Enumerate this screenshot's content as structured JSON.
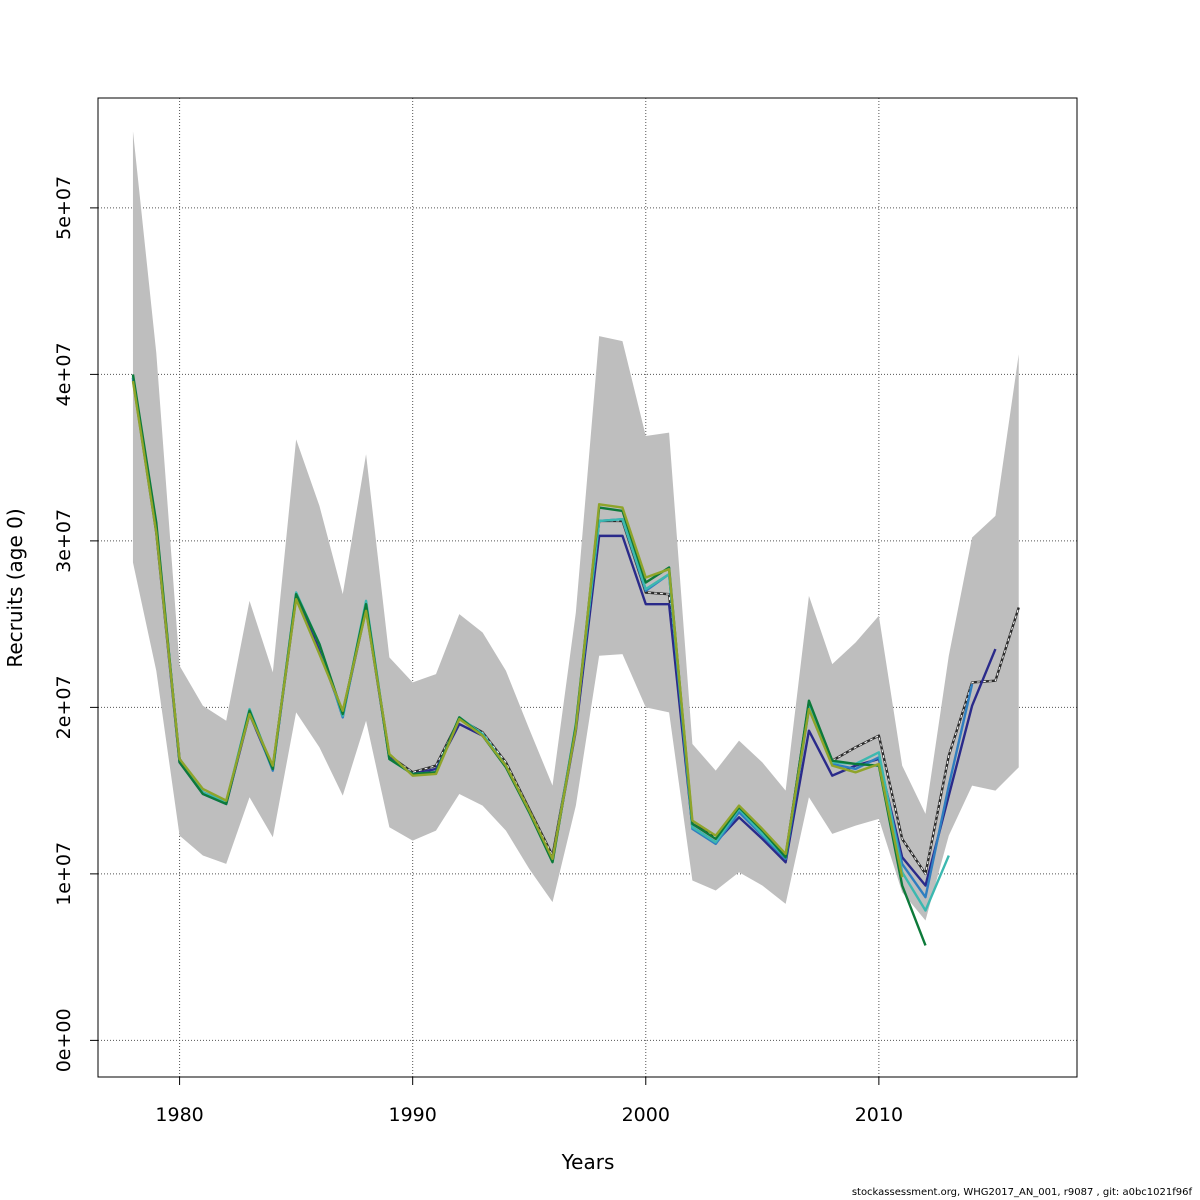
{
  "chart_data": {
    "type": "line",
    "xlabel": "Years",
    "ylabel": "Recruits (age 0)",
    "xlim": [
      1976.5,
      2018.5
    ],
    "ylim": [
      -2200000,
      56600000
    ],
    "x_ticks": [
      1980,
      1990,
      2000,
      2010
    ],
    "x_tick_labels": [
      "1980",
      "1990",
      "2000",
      "2010"
    ],
    "y_ticks": [
      0,
      10000000,
      20000000,
      30000000,
      40000000,
      50000000
    ],
    "y_tick_labels": [
      "0e+00",
      "1e+07",
      "2e+07",
      "3e+07",
      "4e+07",
      "5e+07"
    ],
    "grid": true,
    "band": {
      "color": "#bebebe",
      "x": [
        1978,
        1979,
        1980,
        1981,
        1982,
        1983,
        1984,
        1985,
        1986,
        1987,
        1988,
        1989,
        1990,
        1991,
        1992,
        1993,
        1994,
        1995,
        1996,
        1997,
        1998,
        1999,
        2000,
        2001,
        2002,
        2003,
        2004,
        2005,
        2006,
        2007,
        2008,
        2009,
        2010,
        2011,
        2012,
        2013,
        2014,
        2015,
        2016
      ],
      "upper": [
        54600000,
        41300000,
        22500000,
        20100000,
        19200000,
        26400000,
        22100000,
        36100000,
        32100000,
        26800000,
        35200000,
        23000000,
        21500000,
        22000000,
        25600000,
        24500000,
        22200000,
        18700000,
        15300000,
        25700000,
        42300000,
        42000000,
        36300000,
        36500000,
        17800000,
        16200000,
        18000000,
        16700000,
        15000000,
        26700000,
        22600000,
        23900000,
        25500000,
        16500000,
        13600000,
        23100000,
        30200000,
        31500000,
        41200000
      ],
      "lower": [
        28700000,
        22200000,
        12300000,
        11100000,
        10600000,
        14600000,
        12200000,
        19700000,
        17600000,
        14700000,
        19200000,
        12800000,
        12000000,
        12600000,
        14800000,
        14100000,
        12600000,
        10300000,
        8300000,
        14100000,
        23100000,
        23200000,
        20000000,
        19700000,
        9600000,
        9000000,
        10100000,
        9300000,
        8200000,
        14600000,
        12400000,
        12900000,
        13300000,
        8900000,
        7200000,
        12300000,
        15300000,
        15000000,
        16400000
      ]
    },
    "series": [
      {
        "color": "#2b2b2b",
        "dashed_overlay": true,
        "x": [
          1978,
          1979,
          1980,
          1981,
          1982,
          1983,
          1984,
          1985,
          1986,
          1987,
          1988,
          1989,
          1990,
          1991,
          1992,
          1993,
          1994,
          1995,
          1996,
          1997,
          1998,
          1999,
          2000,
          2001,
          2002,
          2003,
          2004,
          2005,
          2006,
          2007,
          2008,
          2009,
          2010,
          2011,
          2012,
          2013,
          2014,
          2015,
          2016
        ],
        "values": [
          39800000,
          30600000,
          16900000,
          14900000,
          14300000,
          19700000,
          16400000,
          26700000,
          23500000,
          19700000,
          26000000,
          17100000,
          16100000,
          16500000,
          19300000,
          18500000,
          16700000,
          13900000,
          11100000,
          18800000,
          31200000,
          31200000,
          26900000,
          26800000,
          13000000,
          12200000,
          13900000,
          12500000,
          11100000,
          20300000,
          16800000,
          17600000,
          18300000,
          12100000,
          10000000,
          17100000,
          21500000,
          21600000,
          26000000
        ]
      },
      {
        "color": "#2a2a8a",
        "x": [
          1978,
          1979,
          1980,
          1981,
          1982,
          1983,
          1984,
          1985,
          1986,
          1987,
          1988,
          1989,
          1990,
          1991,
          1992,
          1993,
          1994,
          1995,
          1996,
          1997,
          1998,
          1999,
          2000,
          2001,
          2002,
          2003,
          2004,
          2005,
          2006,
          2007,
          2008,
          2009,
          2010,
          2011,
          2012,
          2013,
          2014,
          2015
        ],
        "values": [
          39700000,
          30500000,
          16700000,
          14800000,
          14200000,
          19600000,
          16300000,
          26600000,
          23400000,
          19600000,
          25900000,
          17000000,
          16000000,
          16300000,
          19000000,
          18300000,
          16500000,
          13700000,
          10900000,
          18600000,
          30300000,
          30300000,
          26200000,
          26200000,
          12800000,
          11900000,
          13400000,
          12100000,
          10700000,
          18600000,
          15900000,
          16500000,
          16900000,
          11000000,
          9300000,
          14700000,
          20100000,
          23500000
        ]
      },
      {
        "color": "#2f7ec0",
        "x": [
          1978,
          1979,
          1980,
          1981,
          1982,
          1983,
          1984,
          1985,
          1986,
          1987,
          1988,
          1989,
          1990,
          1991,
          1992,
          1993,
          1994,
          1995,
          1996,
          1997,
          1998,
          1999,
          2000,
          2001,
          2002,
          2003,
          2004,
          2005,
          2006,
          2007,
          2008,
          2009,
          2010,
          2011,
          2012,
          2013,
          2014
        ],
        "values": [
          39800000,
          30800000,
          16800000,
          14800000,
          14200000,
          19800000,
          16200000,
          26800000,
          23800000,
          19400000,
          26300000,
          16900000,
          16000000,
          16100000,
          19300000,
          18400000,
          16500000,
          13700000,
          10800000,
          18900000,
          31200000,
          31300000,
          27000000,
          28000000,
          12700000,
          11800000,
          13700000,
          12300000,
          10900000,
          19900000,
          16600000,
          16300000,
          17000000,
          10600000,
          8600000,
          15300000,
          21400000
        ]
      },
      {
        "color": "#3cb8b0",
        "x": [
          1978,
          1979,
          1980,
          1981,
          1982,
          1983,
          1984,
          1985,
          1986,
          1987,
          1988,
          1989,
          1990,
          1991,
          1992,
          1993,
          1994,
          1995,
          1996,
          1997,
          1998,
          1999,
          2000,
          2001,
          2002,
          2003,
          2004,
          2005,
          2006,
          2007,
          2008,
          2009,
          2010,
          2011,
          2012,
          2013
        ],
        "values": [
          39900000,
          30900000,
          16800000,
          14900000,
          14300000,
          19900000,
          16300000,
          26900000,
          23800000,
          19500000,
          26400000,
          16900000,
          16000000,
          16100000,
          19400000,
          18400000,
          16500000,
          13700000,
          10800000,
          19000000,
          31200000,
          31300000,
          27100000,
          28000000,
          12800000,
          11900000,
          13900000,
          12400000,
          11000000,
          20100000,
          16700000,
          16600000,
          17300000,
          10100000,
          7800000,
          11100000
        ]
      },
      {
        "color": "#0d7a3a",
        "x": [
          1978,
          1979,
          1980,
          1981,
          1982,
          1983,
          1984,
          1985,
          1986,
          1987,
          1988,
          1989,
          1990,
          1991,
          1992,
          1993,
          1994,
          1995,
          1996,
          1997,
          1998,
          1999,
          2000,
          2001,
          2002,
          2003,
          2004,
          2005,
          2006,
          2007,
          2008,
          2009,
          2010,
          2011,
          2012
        ],
        "values": [
          40000000,
          31100000,
          16700000,
          14800000,
          14200000,
          19800000,
          16300000,
          26800000,
          23800000,
          19600000,
          26200000,
          16900000,
          16000000,
          16100000,
          19400000,
          18300000,
          16400000,
          13700000,
          10700000,
          18900000,
          32000000,
          31800000,
          27500000,
          28400000,
          13000000,
          12100000,
          14000000,
          12600000,
          11000000,
          20400000,
          16800000,
          16600000,
          16500000,
          9300000,
          5700000
        ]
      },
      {
        "color": "#8fa42a",
        "x": [
          1978,
          1979,
          1980,
          1981,
          1982,
          1983,
          1984,
          1985,
          1986,
          1987,
          1988,
          1989,
          1990,
          1991,
          1992,
          1993,
          1994,
          1995,
          1996,
          1997,
          1998,
          1999,
          2000,
          2001,
          2002,
          2003,
          2004,
          2005,
          2006,
          2007,
          2008,
          2009,
          2010,
          2011
        ],
        "values": [
          39600000,
          30500000,
          16900000,
          15100000,
          14400000,
          19600000,
          16500000,
          26500000,
          23200000,
          19800000,
          25800000,
          17200000,
          15900000,
          16000000,
          19300000,
          18300000,
          16500000,
          13800000,
          10900000,
          18700000,
          32200000,
          32000000,
          27800000,
          28300000,
          13200000,
          12300000,
          14100000,
          12700000,
          11200000,
          19900000,
          16500000,
          16100000,
          16600000,
          9800000
        ]
      }
    ]
  },
  "credit": "stockassessment.org, WHG2017_AN_001, r9087 , git: a0bc1021f96f"
}
